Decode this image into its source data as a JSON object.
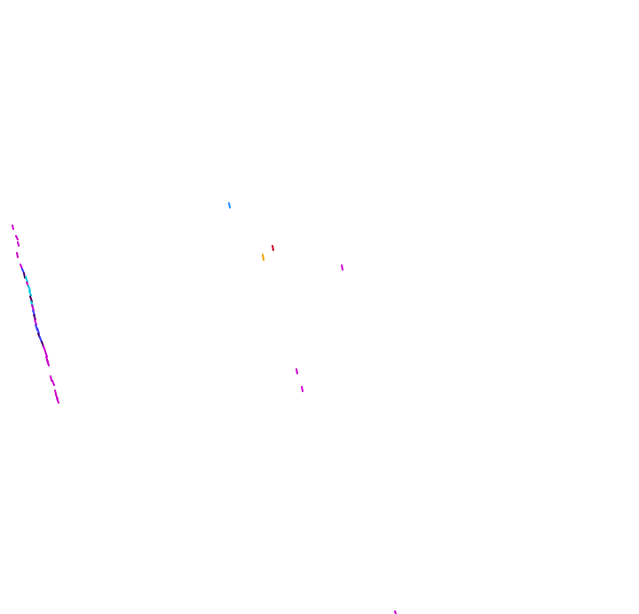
{
  "scene": {
    "background": "#ffffff",
    "description_visible_text": "",
    "strokes": {
      "magenta": "#cc00cc",
      "cyan": "#00c8dc",
      "blue": "#3a3aff",
      "dark_purple": "#4b0062",
      "orange": "#f0a000",
      "red": "#c80028",
      "sky": "#1e90ff"
    }
  }
}
